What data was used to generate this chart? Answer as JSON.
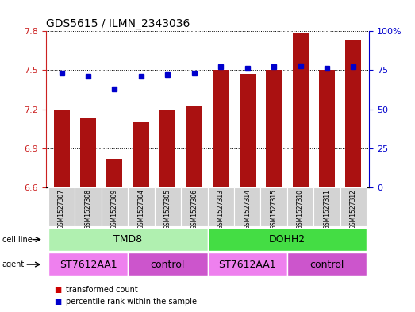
{
  "title": "GDS5615 / ILMN_2343036",
  "samples": [
    "GSM1527307",
    "GSM1527308",
    "GSM1527309",
    "GSM1527304",
    "GSM1527305",
    "GSM1527306",
    "GSM1527313",
    "GSM1527314",
    "GSM1527315",
    "GSM1527310",
    "GSM1527311",
    "GSM1527312"
  ],
  "red_values": [
    7.2,
    7.13,
    6.82,
    7.1,
    7.19,
    7.22,
    7.5,
    7.47,
    7.5,
    7.79,
    7.5,
    7.73
  ],
  "blue_values": [
    73,
    71,
    63,
    71,
    72,
    73,
    77,
    76,
    77,
    78,
    76,
    77
  ],
  "ylim_left": [
    6.6,
    7.8
  ],
  "ylim_right": [
    0,
    100
  ],
  "yticks_left": [
    6.6,
    6.9,
    7.2,
    7.5,
    7.8
  ],
  "yticks_right": [
    0,
    25,
    50,
    75,
    100
  ],
  "ytick_labels_right": [
    "0",
    "25",
    "50",
    "75",
    "100%"
  ],
  "cell_line_groups": [
    {
      "label": "TMD8",
      "start": 0,
      "end": 5,
      "color": "#b0f0b0"
    },
    {
      "label": "DOHH2",
      "start": 6,
      "end": 11,
      "color": "#44dd44"
    }
  ],
  "agent_groups": [
    {
      "label": "ST7612AA1",
      "start": 0,
      "end": 2,
      "color": "#ee80ee"
    },
    {
      "label": "control",
      "start": 3,
      "end": 5,
      "color": "#cc55cc"
    },
    {
      "label": "ST7612AA1",
      "start": 6,
      "end": 8,
      "color": "#ee80ee"
    },
    {
      "label": "control",
      "start": 9,
      "end": 11,
      "color": "#cc55cc"
    }
  ],
  "bar_color": "#aa1111",
  "dot_color": "#0000cc",
  "sample_bg_color": "#d3d3d3",
  "legend_items": [
    {
      "color": "#cc0000",
      "label": "transformed count"
    },
    {
      "color": "#0000cc",
      "label": "percentile rank within the sample"
    }
  ]
}
